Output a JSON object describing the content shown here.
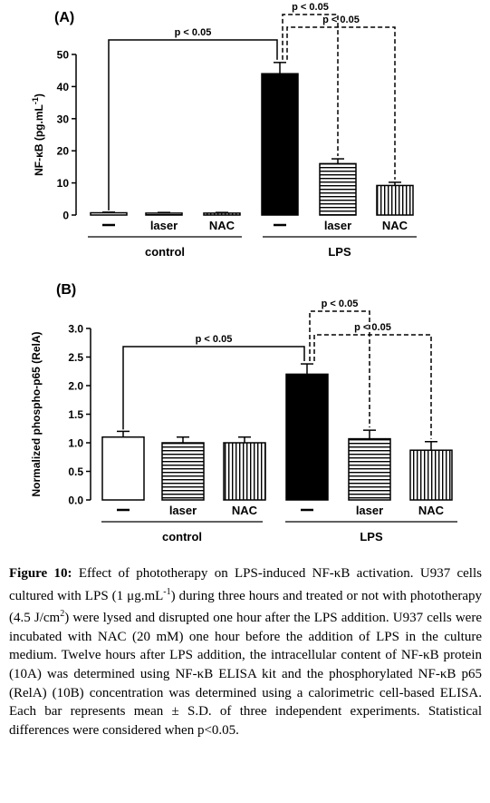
{
  "chart_data": [
    {
      "panel": "(A)",
      "type": "bar",
      "ylabel": "NF-κB (pg.mL-1)",
      "ylim": [
        0,
        50
      ],
      "yticks": [
        0,
        10,
        20,
        30,
        40,
        50
      ],
      "categories": [
        "—",
        "laser",
        "NAC",
        "—",
        "laser",
        "NAC"
      ],
      "values": [
        0.7,
        0.6,
        0.6,
        44.0,
        16.0,
        9.2
      ],
      "errors": [
        0.2,
        0.2,
        0.2,
        3.5,
        1.5,
        1.0
      ],
      "fills": [
        "white",
        "hstripe",
        "vstripe",
        "black",
        "hstripe",
        "vstripe"
      ],
      "groups": [
        {
          "label": "control",
          "bars": [
            0,
            2
          ]
        },
        {
          "label": "LPS",
          "bars": [
            3,
            5
          ]
        }
      ],
      "annotations": [
        {
          "text": "p < 0.05",
          "from": 0,
          "to": 3,
          "style": "solid"
        },
        {
          "text": "p < 0.05",
          "from": 3,
          "to": 5,
          "style": "dashed"
        },
        {
          "text": "p < 0.05",
          "from": 3,
          "to": 4,
          "style": "dashed"
        }
      ]
    },
    {
      "panel": "(B)",
      "type": "bar",
      "ylabel": "Normalized phospho-p65 (RelA)",
      "ylim": [
        0,
        3.0
      ],
      "yticks": [
        "0.0",
        "0.5",
        "1.0",
        "1.5",
        "2.0",
        "2.5",
        "3.0"
      ],
      "categories": [
        "—",
        "laser",
        "NAC",
        "—",
        "laser",
        "NAC"
      ],
      "values": [
        1.1,
        1.0,
        1.0,
        2.2,
        1.07,
        0.87
      ],
      "errors": [
        0.1,
        0.1,
        0.1,
        0.18,
        0.15,
        0.15
      ],
      "fills": [
        "white",
        "hstripe",
        "vstripe",
        "black",
        "hstripe",
        "vstripe"
      ],
      "groups": [
        {
          "label": "control",
          "bars": [
            0,
            2
          ]
        },
        {
          "label": "LPS",
          "bars": [
            3,
            5
          ]
        }
      ],
      "annotations": [
        {
          "text": "p < 0.05",
          "from": 0,
          "to": 3,
          "style": "solid"
        },
        {
          "text": "p < 0.05",
          "from": 3,
          "to": 5,
          "style": "dashed"
        },
        {
          "text": "p < 0.05",
          "from": 3,
          "to": 4,
          "style": "dashed"
        }
      ]
    }
  ],
  "caption": {
    "label": "Figure 10:",
    "title": " Effect of phototherapy on LPS-induced NF-κB activation.",
    "p1": " U937 cells cultured with LPS (1 μg.mL",
    "p1sup": "-1",
    "p2": ") during three hours and treated or not with phototherapy (4.5 J/cm",
    "p2sup": "2",
    "p3": ") were lysed and disrupted one hour after the LPS addition. U937 cells were incubated with NAC (20 mM) one hour before the addition of LPS in the culture medium. Twelve hours after LPS addition, the intracellular content of NF-κB protein (10A) was determined using NF-κB ELISA kit and the phosphorylated NF-κB p65 (RelA) (10B) concentration was determined using a calorimetric cell-based ELISA. Each bar represents mean ± S.D. of three independent experiments. Statistical differences were considered when p<0.05."
  }
}
